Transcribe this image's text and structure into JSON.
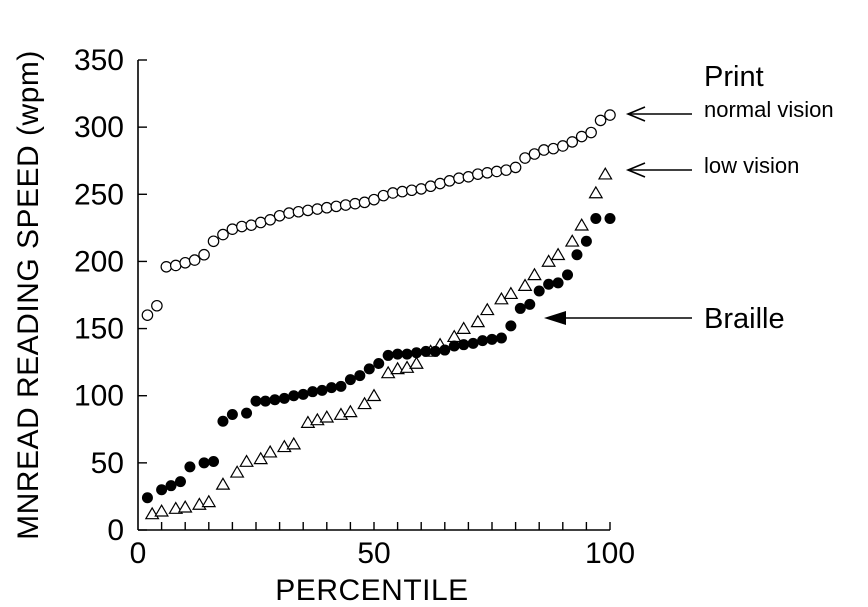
{
  "chart_data": {
    "type": "scatter",
    "title": "",
    "xlabel": "PERCENTILE",
    "ylabel": "MNREAD READING SPEED (wpm)",
    "xlim": [
      0,
      100
    ],
    "ylim": [
      0,
      350
    ],
    "xticks": [
      0,
      50,
      100
    ],
    "yticks": [
      0,
      50,
      100,
      150,
      200,
      250,
      300,
      350
    ],
    "grid": false,
    "legend": "none",
    "series": [
      {
        "marker": "open-circle",
        "x": [
          2,
          4,
          6,
          8,
          10,
          12,
          14,
          16,
          18,
          20,
          22,
          24,
          26,
          28,
          30,
          32,
          34,
          36,
          38,
          40,
          42,
          44,
          46,
          48,
          50,
          52,
          54,
          56,
          58,
          60,
          62,
          64,
          66,
          68,
          70,
          72,
          74,
          76,
          78,
          80,
          82,
          84,
          86,
          88,
          90,
          92,
          94,
          96,
          98,
          100
        ],
        "y": [
          160,
          167,
          196,
          197,
          199,
          201,
          205,
          215,
          220,
          224,
          226,
          227,
          229,
          231,
          234,
          236,
          237,
          238,
          239,
          240,
          241,
          242,
          243,
          244,
          246,
          249,
          251,
          252,
          253,
          254,
          256,
          258,
          260,
          262,
          263,
          265,
          266,
          267,
          268,
          270,
          277,
          280,
          283,
          284,
          286,
          289,
          293,
          296,
          305,
          309
        ]
      },
      {
        "marker": "open-triangle",
        "x": [
          3,
          5,
          8,
          10,
          13,
          15,
          18,
          21,
          23,
          26,
          28,
          31,
          33,
          36,
          38,
          40,
          43,
          45,
          48,
          50,
          53,
          55,
          57,
          59,
          62,
          64,
          67,
          69,
          72,
          74,
          77,
          79,
          82,
          84,
          87,
          89,
          92,
          94,
          97,
          99
        ],
        "y": [
          12,
          14,
          16,
          17,
          19,
          21,
          34,
          43,
          51,
          53,
          58,
          62,
          64,
          80,
          82,
          84,
          86,
          88,
          94,
          100,
          117,
          120,
          121,
          124,
          133,
          138,
          144,
          150,
          155,
          164,
          172,
          176,
          182,
          190,
          200,
          205,
          215,
          227,
          251,
          265
        ]
      },
      {
        "marker": "filled-circle",
        "x": [
          2,
          5,
          7,
          9,
          11,
          14,
          16,
          18,
          20,
          23,
          25,
          27,
          29,
          31,
          33,
          35,
          37,
          39,
          41,
          43,
          45,
          47,
          49,
          51,
          53,
          55,
          57,
          59,
          61,
          63,
          65,
          67,
          69,
          71,
          73,
          75,
          77,
          79,
          81,
          83,
          85,
          87,
          89,
          91,
          93,
          95,
          97,
          100
        ],
        "y": [
          24,
          30,
          33,
          36,
          47,
          50,
          51,
          81,
          86,
          87,
          96,
          96,
          97,
          98,
          100,
          101,
          103,
          104,
          106,
          107,
          112,
          115,
          120,
          124,
          130,
          131,
          131,
          132,
          133,
          133,
          134,
          137,
          138,
          139,
          141,
          142,
          143,
          152,
          165,
          168,
          178,
          183,
          184,
          190,
          205,
          215,
          232,
          232
        ]
      }
    ],
    "annotations": [
      {
        "text": "Print"
      },
      {
        "text": "normal vision"
      },
      {
        "text": "low vision"
      },
      {
        "text": "Braille"
      }
    ]
  }
}
